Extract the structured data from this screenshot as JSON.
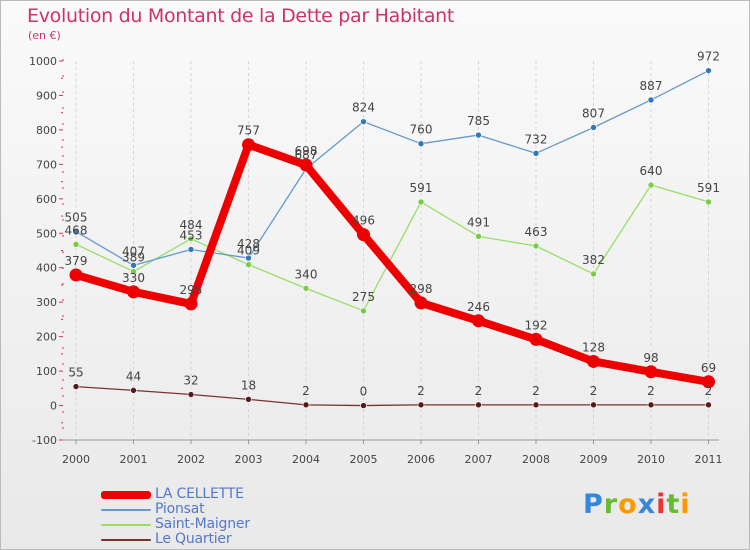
{
  "header": {
    "title": "Evolution du Montant de la Dette par Habitant",
    "subtitle": "(en €)"
  },
  "chart_data": {
    "type": "line",
    "title": "Evolution du Montant de la Dette par Habitant",
    "subtitle": "(en €)",
    "xlabel": "",
    "ylabel": "",
    "x": [
      "2000",
      "2001",
      "2002",
      "2003",
      "2004",
      "2005",
      "2006",
      "2007",
      "2008",
      "2009",
      "2010",
      "2011"
    ],
    "ylim": [
      -100,
      1000
    ],
    "yticks": [
      -100,
      0,
      100,
      200,
      300,
      400,
      500,
      600,
      700,
      800,
      900,
      1000
    ],
    "grid": "vertical dashed",
    "legend_position": "bottom-left",
    "series": [
      {
        "name": "LA CELLETTE",
        "color": "#ee0000",
        "values": [
          379,
          330,
          295,
          757,
          698,
          496,
          298,
          246,
          192,
          128,
          98,
          69
        ]
      },
      {
        "name": "Pionsat",
        "color": "#6699cc",
        "values": [
          505,
          407,
          453,
          428,
          687,
          824,
          760,
          785,
          732,
          807,
          887,
          972
        ]
      },
      {
        "name": "Saint-Maigner",
        "color": "#99dd66",
        "values": [
          468,
          389,
          484,
          409,
          340,
          275,
          591,
          491,
          463,
          382,
          640,
          591
        ]
      },
      {
        "name": "Le Quartier",
        "color": "#773333",
        "values": [
          55,
          44,
          32,
          18,
          2,
          0,
          2,
          2,
          2,
          2,
          2,
          2
        ]
      }
    ]
  },
  "logo": {
    "letters": [
      {
        "ch": "P",
        "color": "#3388dd"
      },
      {
        "ch": "r",
        "color": "#66bb33"
      },
      {
        "ch": "o",
        "color": "#ff9900"
      },
      {
        "ch": "x",
        "color": "#3388dd"
      },
      {
        "ch": "i",
        "color": "#ee3333"
      },
      {
        "ch": "t",
        "color": "#66bb33"
      },
      {
        "ch": "i",
        "color": "#ff9900"
      }
    ]
  }
}
